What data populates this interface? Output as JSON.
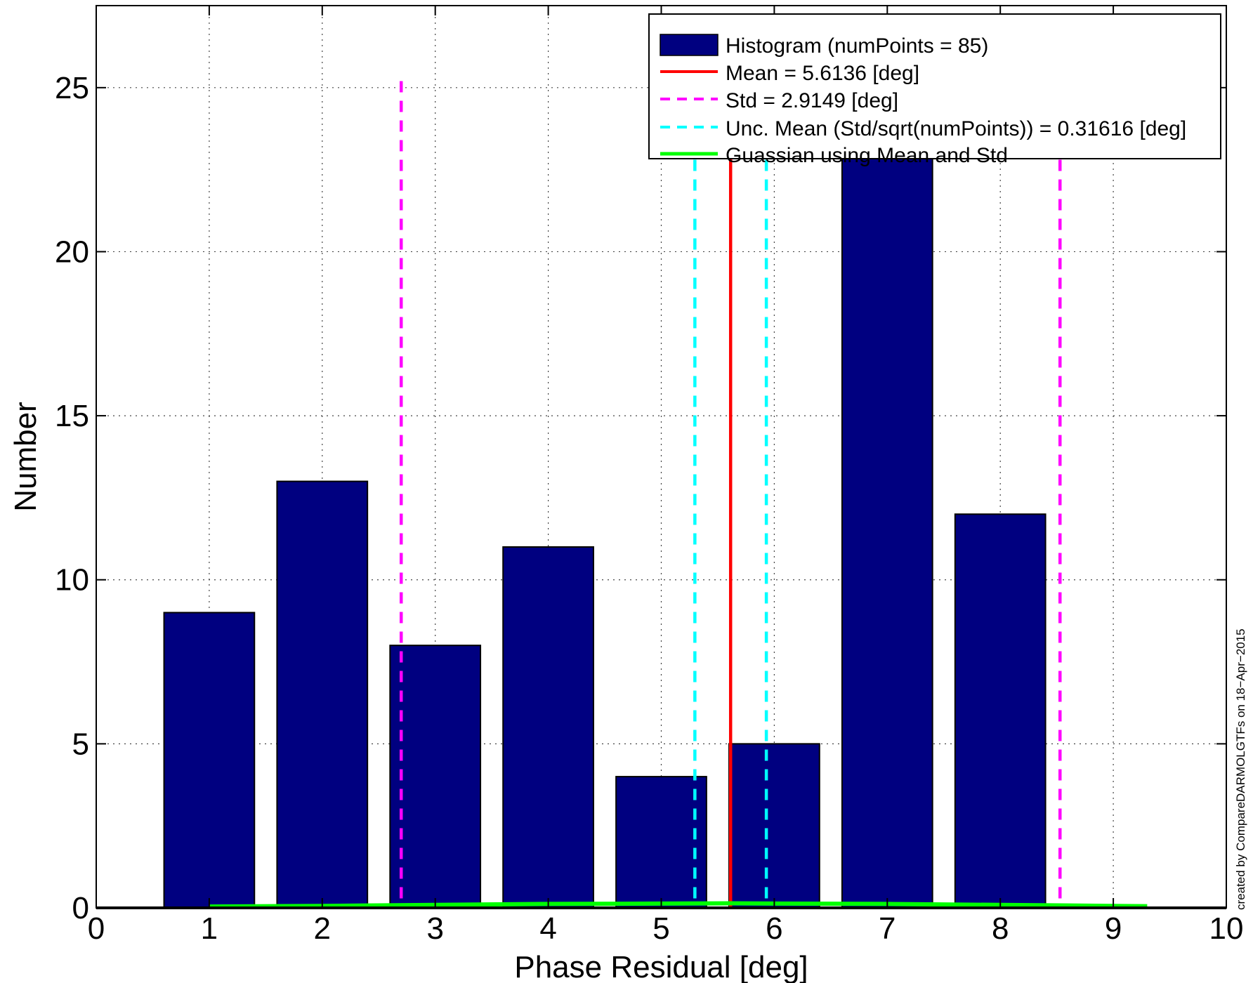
{
  "chart_data": {
    "type": "bar",
    "xlabel": "Phase Residual [deg]",
    "ylabel": "Number",
    "xlim": [
      0,
      10
    ],
    "ylim": [
      0,
      27.5
    ],
    "xticks": [
      0,
      1,
      2,
      3,
      4,
      5,
      6,
      7,
      8,
      9,
      10
    ],
    "yticks": [
      0,
      5,
      10,
      15,
      20,
      25
    ],
    "grid": true,
    "legend_position": "top-right",
    "histogram": {
      "name": "Histogram (numPoints = 85)",
      "color": "#000080",
      "bin_centers": [
        1,
        2,
        3,
        4,
        5,
        6,
        7,
        8,
        9
      ],
      "values": [
        9,
        13,
        8,
        11,
        4,
        5,
        23,
        12,
        0
      ],
      "bars": [
        {
          "x": 1.0,
          "value": 9
        },
        {
          "x": 2.0,
          "value": 13
        },
        {
          "x": 3.0,
          "value": 8
        },
        {
          "x": 4.0,
          "value": 11
        },
        {
          "x": 5.0,
          "value": 4
        },
        {
          "x": 6.0,
          "value": 5
        },
        {
          "x": 7.0,
          "value": 23
        },
        {
          "x": 8.0,
          "value": 12
        }
      ],
      "bar_width": 0.8
    },
    "mean": {
      "name": "Mean = 5.6136 [deg]",
      "value": 5.6136,
      "color": "#ff0000"
    },
    "std": {
      "name": "Std = 2.9149 [deg]",
      "lines_at": [
        2.6987,
        8.5285
      ],
      "color": "#ff00ff",
      "top": 25.2
    },
    "unc_mean": {
      "name": "Unc. Mean (Std/sqrt(numPoints)) = 0.31616 [deg]",
      "lines_at": [
        5.2974,
        5.9298
      ],
      "color": "#00ffff"
    },
    "gaussian": {
      "name": "Guassian using Mean and Std",
      "color": "#00ff00",
      "x": [
        1.0,
        2.0,
        3.0,
        4.0,
        5.0,
        5.6136,
        6.0,
        7.0,
        8.0,
        9.0,
        9.3
      ],
      "y": [
        0.04,
        0.06,
        0.09,
        0.12,
        0.13,
        0.14,
        0.13,
        0.12,
        0.09,
        0.06,
        0.05
      ]
    }
  },
  "footer": "created by CompareDARMOLGTFs on 18−Apr−2015"
}
